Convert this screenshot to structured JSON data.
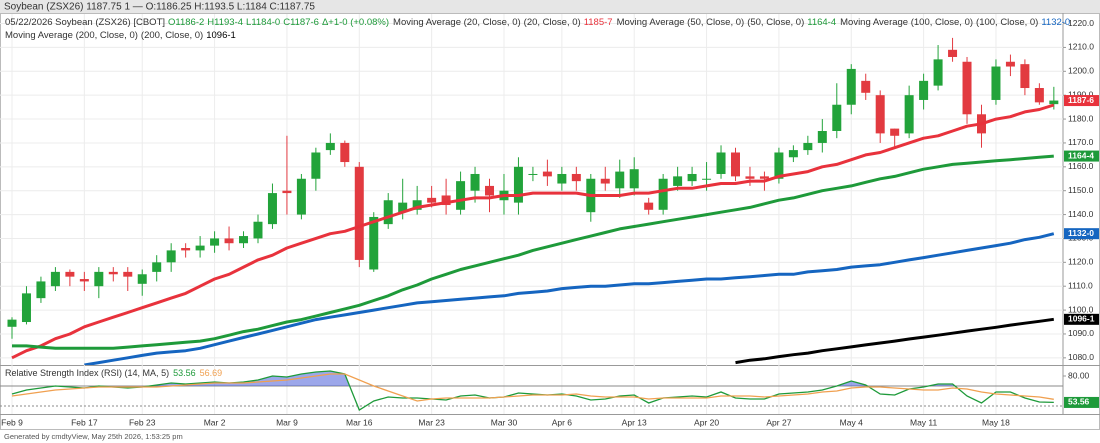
{
  "chart_data": [
    {
      "type": "candlestick",
      "title": "Soybean (ZSX26) 1187.75 1 — O:1186.25 H:1193.5 L:1184 C:1187.75",
      "header": [
        {
          "text": "05/22/2026 Soybean (ZSX26) [CBOT]",
          "color": "#333333"
        },
        {
          "text": "O1186-2",
          "color": "#1e9a3a"
        },
        {
          "text": "H1193-4",
          "color": "#1e9a3a"
        },
        {
          "text": "L1184-0",
          "color": "#1e9a3a"
        },
        {
          "text": "C1187-6",
          "color": "#1e9a3a"
        },
        {
          "text": "Δ+1-0 (+0.08%)",
          "color": "#1e9a3a"
        }
      ],
      "categories": [
        "Feb 9",
        null,
        null,
        null,
        null,
        "Feb 17",
        null,
        null,
        null,
        "Feb 23",
        null,
        null,
        null,
        null,
        "Mar 2",
        null,
        null,
        null,
        null,
        "Mar 9",
        null,
        null,
        null,
        null,
        "Mar 16",
        null,
        null,
        null,
        null,
        "Mar 23",
        null,
        null,
        null,
        null,
        "Mar 30",
        null,
        null,
        null,
        "Apr 6",
        null,
        null,
        null,
        null,
        "Apr 13",
        null,
        null,
        null,
        null,
        "Apr 20",
        null,
        null,
        null,
        null,
        "Apr 27",
        null,
        null,
        null,
        null,
        "May 4",
        null,
        null,
        null,
        null,
        "May 11",
        null,
        null,
        null,
        null,
        "May 18",
        null,
        null,
        null,
        null
      ],
      "open": [
        1093,
        1095,
        1105,
        1110,
        1116,
        1113,
        1110,
        1116,
        1116,
        1111,
        1116,
        1120,
        1126,
        1125,
        1127,
        1130,
        1128,
        1130,
        1136,
        1150,
        1140,
        1155,
        1167,
        1170,
        1160,
        1117,
        1136,
        1141,
        1142,
        1147,
        1148,
        1142,
        1150,
        1152,
        1146,
        1145,
        1157,
        1158,
        1153,
        1157,
        1141,
        1155,
        1151,
        1151,
        1145,
        1142,
        1152,
        1154,
        1155,
        1157,
        1166,
        1156,
        1156,
        1155,
        1164,
        1167,
        1170,
        1175,
        1186,
        1196,
        1190,
        1176,
        1174,
        1188,
        1194,
        1209,
        1204,
        1182,
        1188,
        1204,
        1203,
        1193,
        1186.25
      ],
      "high": [
        1097,
        1110,
        1114,
        1118,
        1117,
        1116,
        1118,
        1118,
        1118,
        1117,
        1123,
        1128,
        1128,
        1131,
        1133,
        1135,
        1133,
        1140,
        1153,
        1173,
        1157,
        1168,
        1174,
        1171,
        1162,
        1141,
        1149,
        1155,
        1152,
        1152,
        1155,
        1158,
        1160,
        1155,
        1157,
        1164,
        1160,
        1163,
        1160,
        1160,
        1157,
        1160,
        1163,
        1164,
        1147,
        1157,
        1160,
        1160,
        1162,
        1169,
        1168,
        1160,
        1158,
        1168,
        1169,
        1173,
        1180,
        1195,
        1203,
        1199,
        1192,
        1176,
        1194,
        1199,
        1211,
        1214,
        1206,
        1186,
        1205,
        1207,
        1205,
        1195,
        1193.5
      ],
      "low": [
        1088,
        1094,
        1103,
        1108,
        1110,
        1108,
        1105,
        1112,
        1108,
        1106,
        1112,
        1116,
        1122,
        1122,
        1124,
        1125,
        1126,
        1128,
        1134,
        1140,
        1138,
        1150,
        1165,
        1160,
        1118,
        1116,
        1134,
        1138,
        1140,
        1143,
        1140,
        1140,
        1145,
        1141,
        1140,
        1140,
        1154,
        1152,
        1150,
        1150,
        1137,
        1150,
        1147,
        1148,
        1140,
        1140,
        1150,
        1152,
        1150,
        1155,
        1154,
        1152,
        1150,
        1153,
        1162,
        1165,
        1166,
        1172,
        1182,
        1188,
        1170,
        1168,
        1172,
        1184,
        1192,
        1204,
        1178,
        1168,
        1186,
        1198,
        1190,
        1186,
        1184
      ],
      "close": [
        1096,
        1107,
        1112,
        1116,
        1114,
        1112,
        1116,
        1115,
        1114,
        1115,
        1120,
        1125,
        1125,
        1127,
        1130,
        1128,
        1131,
        1137,
        1149,
        1149,
        1155,
        1166,
        1170,
        1162,
        1121,
        1139,
        1146,
        1145,
        1146,
        1145,
        1144,
        1154,
        1157,
        1148,
        1150,
        1160,
        1157,
        1156,
        1157,
        1154,
        1155,
        1153,
        1158,
        1159,
        1142,
        1155,
        1156,
        1157,
        1155,
        1166,
        1156,
        1155,
        1155,
        1166,
        1167,
        1170,
        1175,
        1186,
        1201,
        1191,
        1174,
        1173,
        1190,
        1196,
        1205,
        1206,
        1182,
        1174,
        1202,
        1202,
        1193,
        1187,
        1187.75
      ],
      "up_color": "#22a33a",
      "down_color": "#e23a40",
      "close_label": "1187-6",
      "close_label_color": "#e8323c",
      "series": [
        {
          "name": "Moving Average (20, Close, 0)",
          "params": "(20, Close, 0)",
          "legend_value": "1185-7",
          "color": "#e8323c",
          "tag": false,
          "values": [
            1080,
            1083,
            1085,
            1088,
            1090,
            1093,
            1095,
            1097,
            1099,
            1101,
            1103,
            1105,
            1107,
            1110,
            1113,
            1115,
            1118,
            1121,
            1123,
            1126,
            1128,
            1130,
            1132,
            1133,
            1135,
            1137,
            1139,
            1141,
            1143,
            1144,
            1145,
            1146,
            1147,
            1147,
            1148,
            1148,
            1149,
            1149,
            1149,
            1149,
            1148,
            1148,
            1148,
            1149,
            1149,
            1150,
            1151,
            1151,
            1152,
            1153,
            1153,
            1154,
            1154,
            1156,
            1157,
            1158,
            1160,
            1161,
            1163,
            1165,
            1166,
            1168,
            1170,
            1172,
            1173,
            1175,
            1177,
            1178,
            1180,
            1181,
            1183,
            1184,
            1185.875
          ]
        },
        {
          "name": "Moving Average (50, Close, 0)",
          "params": "(50, Close, 0)",
          "legend_value": "1164-4",
          "color": "#1e9a3a",
          "tag": true,
          "values": [
            1085,
            1085,
            1084.5,
            1084,
            1084,
            1084,
            1084,
            1084,
            1084.5,
            1085,
            1085.5,
            1086,
            1086.5,
            1087,
            1088,
            1089.5,
            1091,
            1092,
            1093.5,
            1095,
            1096,
            1097.5,
            1099,
            1100.5,
            1102,
            1104,
            1106,
            1108.5,
            1110.5,
            1113,
            1115,
            1117,
            1118.5,
            1120,
            1121.5,
            1123,
            1125,
            1126.5,
            1128,
            1129.5,
            1131,
            1132.5,
            1134,
            1135,
            1136,
            1137,
            1138,
            1139,
            1140,
            1141,
            1142,
            1143,
            1144.5,
            1146,
            1147,
            1148.5,
            1150,
            1151,
            1152,
            1153.5,
            1155,
            1156,
            1157.5,
            1159,
            1160,
            1161,
            1161.5,
            1162,
            1162.5,
            1163,
            1163.5,
            1164,
            1164.5
          ]
        },
        {
          "name": "Moving Average (100, Close, 0)",
          "params": "(100, Close, 0)",
          "legend_value": "1132-0",
          "color": "#1565c0",
          "tag": true,
          "values": [
            null,
            null,
            null,
            null,
            null,
            1077,
            1078,
            1079,
            1080,
            1081,
            1082,
            1082.5,
            1083,
            1084,
            1085.5,
            1087,
            1088.5,
            1090,
            1091.5,
            1093,
            1094.5,
            1096,
            1097,
            1098,
            1099,
            1100,
            1101,
            1102,
            1103,
            1103.5,
            1104,
            1104.5,
            1105,
            1105.5,
            1106,
            1107,
            1107.5,
            1108,
            1109,
            1109.5,
            1110,
            1110,
            1110.5,
            1111,
            1111,
            1111.5,
            1112,
            1112.5,
            1113,
            1113,
            1113.5,
            1114,
            1114.5,
            1115,
            1115,
            1116,
            1116.5,
            1117,
            1118,
            1118.5,
            1119,
            1120,
            1121,
            1122,
            1123,
            1124,
            1125,
            1126,
            1127,
            1128,
            1129.5,
            1130.5,
            1132
          ]
        },
        {
          "name": "Moving Average (200, Close, 0)",
          "params": "(200, Close, 0)",
          "legend_value": "1096-1",
          "color": "#000000",
          "tag": true,
          "values": [
            null,
            null,
            null,
            null,
            null,
            null,
            null,
            null,
            null,
            null,
            null,
            null,
            null,
            null,
            null,
            null,
            null,
            null,
            null,
            null,
            null,
            null,
            null,
            null,
            null,
            null,
            null,
            null,
            null,
            null,
            null,
            null,
            null,
            null,
            null,
            null,
            null,
            null,
            null,
            null,
            null,
            null,
            null,
            null,
            null,
            null,
            null,
            null,
            null,
            null,
            1078,
            1079,
            1079.6,
            1080.5,
            1081.3,
            1082,
            1083,
            1083.8,
            1084.6,
            1085.4,
            1086.2,
            1087,
            1087.9,
            1088.7,
            1089.5,
            1090.3,
            1091.2,
            1092,
            1092.8,
            1093.7,
            1094.5,
            1095.3,
            1096.125
          ]
        }
      ],
      "ylim": [
        1077,
        1224
      ],
      "yticks": [
        {
          "value": 1080,
          "label": "1080.0"
        },
        {
          "value": 1090,
          "label": "1090.0"
        },
        {
          "value": 1100,
          "label": "1100.0"
        },
        {
          "value": 1110,
          "label": "1110.0"
        },
        {
          "value": 1120,
          "label": "1120.0"
        },
        {
          "value": 1130,
          "label": "1130.0"
        },
        {
          "value": 1140,
          "label": "1140.0"
        },
        {
          "value": 1150,
          "label": "1150.0"
        },
        {
          "value": 1160,
          "label": "1160.0"
        },
        {
          "value": 1170,
          "label": "1170.0"
        },
        {
          "value": 1180,
          "label": "1180.0"
        },
        {
          "value": 1190,
          "label": "1190.0"
        },
        {
          "value": 1200,
          "label": "1200.0"
        },
        {
          "value": 1210,
          "label": "1210.0"
        },
        {
          "value": 1220,
          "label": "1220.0"
        }
      ],
      "grid": true
    },
    {
      "type": "line",
      "title": "Relative Strength Index (RSI) (14, MA, 5)",
      "series": [
        {
          "color": "#1e9a3a",
          "tag": true,
          "values": [
            62,
            66,
            68,
            70,
            69,
            68,
            70,
            69,
            68,
            69,
            71,
            73,
            72,
            73,
            74,
            73,
            74,
            76,
            80,
            79,
            82,
            84,
            85,
            82,
            46,
            55,
            59,
            58,
            58,
            57,
            56,
            60,
            61,
            58,
            59,
            63,
            62,
            61,
            62,
            60,
            56,
            57,
            60,
            61,
            53,
            58,
            59,
            60,
            59,
            64,
            58,
            57,
            57,
            62,
            63,
            64,
            66,
            70,
            75,
            71,
            62,
            61,
            67,
            69,
            72,
            72,
            60,
            53,
            64,
            64,
            58,
            54,
            53.56
          ]
        },
        {
          "color": "#f0a050",
          "tag": false,
          "values": [
            60,
            62,
            64,
            66,
            67,
            68,
            69,
            69,
            69,
            69,
            69,
            70,
            71,
            72,
            73,
            73,
            73,
            74,
            75,
            76,
            78,
            80,
            82,
            82,
            76,
            70,
            65,
            60,
            55,
            57,
            58,
            58,
            58,
            58,
            59,
            60,
            61,
            61,
            61,
            62,
            60,
            59,
            59,
            59,
            57,
            58,
            58,
            58,
            58,
            60,
            60,
            60,
            59,
            60,
            61,
            62,
            64,
            65,
            68,
            69,
            69,
            68,
            67,
            66,
            66,
            68,
            67,
            64,
            62,
            61,
            60,
            59,
            56.69
          ]
        }
      ],
      "levels": [
        70,
        50
      ],
      "overbought_fill": "#4a5fd8",
      "ylim": [
        42,
        90
      ],
      "yticks": [
        {
          "value": 80,
          "label": "80.00"
        }
      ]
    },
    {
      "type": "footer",
      "text": "Generated by cmdtyView, May 25th 2026, 1:53:25 pm"
    }
  ]
}
